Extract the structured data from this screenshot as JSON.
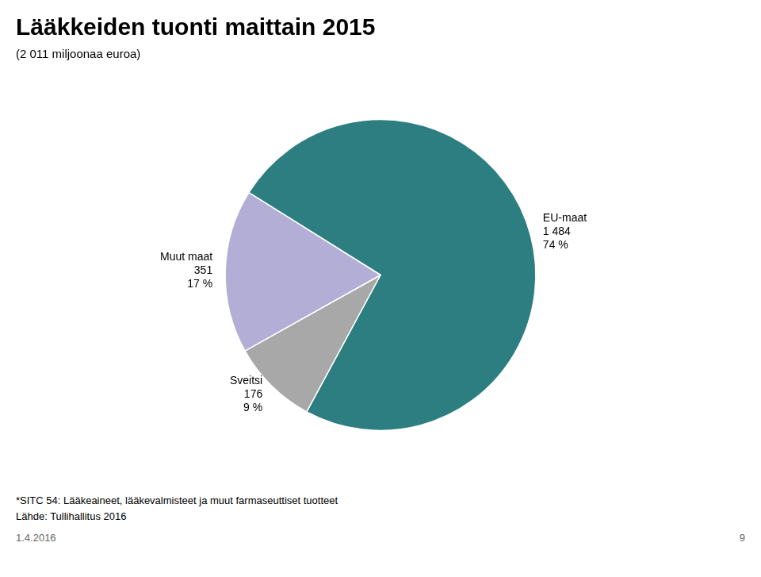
{
  "chart_data": {
    "type": "pie",
    "title": "Lääkkeiden tuonti maittain 2015",
    "subtitle": "(2 011 miljoonaa euroa)",
    "categories": [
      "EU-maat",
      "Sveitsi",
      "Muut maat"
    ],
    "values": [
      74,
      9,
      17
    ],
    "value_labels": [
      "74 %",
      "9 %",
      "17 %"
    ],
    "amounts": [
      1484,
      176,
      351
    ],
    "amount_labels": [
      "1 484",
      "176",
      "351"
    ],
    "colors": [
      "#2d7e80",
      "#a8a8a8",
      "#b3aed6"
    ],
    "data_labels": true,
    "annotations": [
      "*SITC 54: Lääkeaineet, lääkevalmisteet ja muut farmaseuttiset tuotteet",
      "Lähde: Tullihallitus 2016",
      "1.4.2016",
      "9"
    ]
  }
}
